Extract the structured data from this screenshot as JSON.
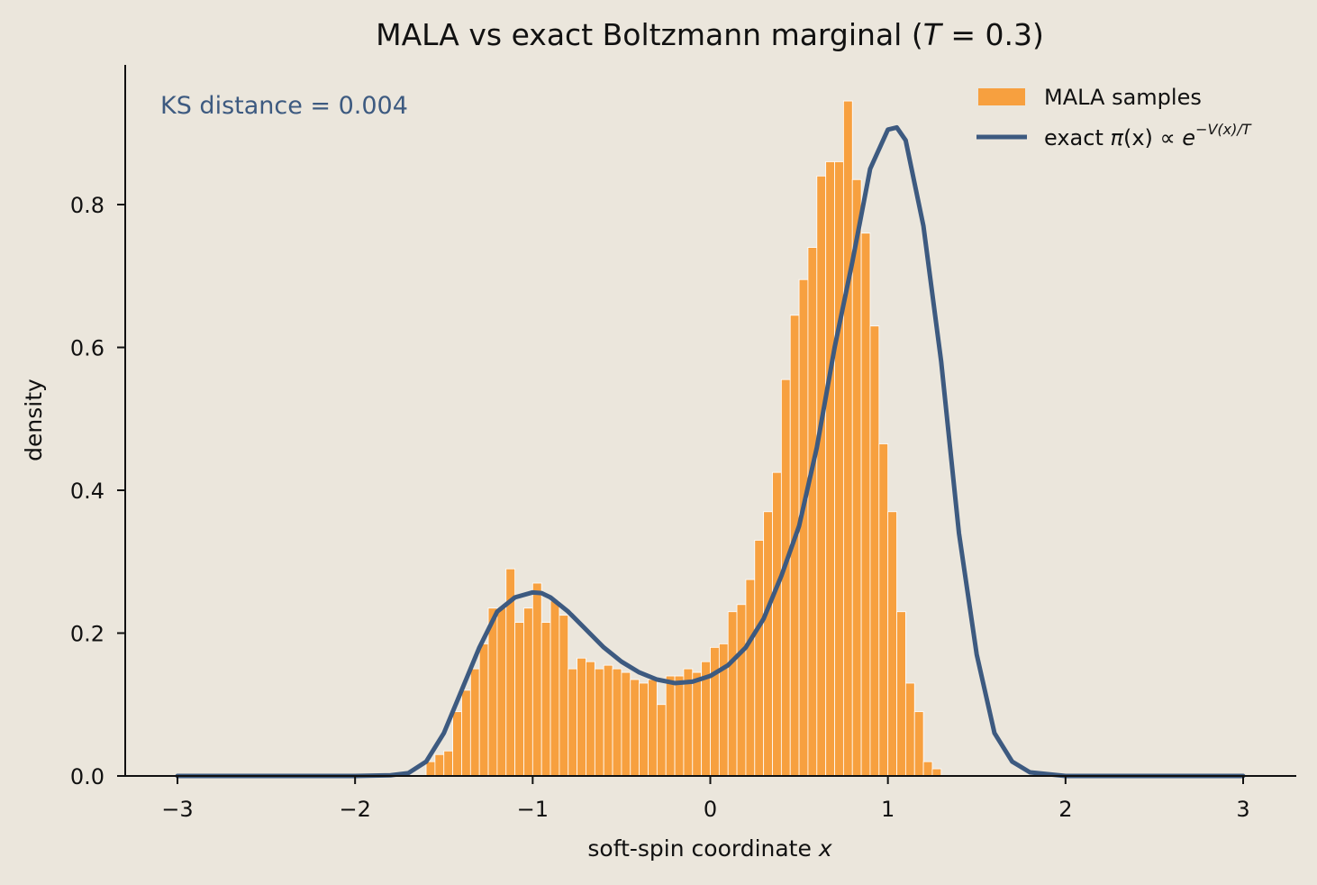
{
  "chart_data": {
    "type": "bar",
    "title": "MALA vs exact Boltzmann marginal  (T = 0.3)",
    "title_parts": {
      "prefix": "MALA vs exact Boltzmann marginal  (",
      "var": "T",
      "eq": " = 0.3)"
    },
    "xlabel": "soft-spin coordinate x",
    "xlabel_parts": {
      "text": "soft-spin coordinate ",
      "var": "x"
    },
    "ylabel": "density",
    "xlim": [
      -3.3,
      3.3
    ],
    "ylim": [
      0,
      0.99
    ],
    "xticks": [
      -3,
      -2,
      -1,
      0,
      1,
      2,
      3
    ],
    "xtick_labels": [
      "−3",
      "−2",
      "−1",
      "0",
      "1",
      "2",
      "3"
    ],
    "yticks": [
      0.0,
      0.2,
      0.4,
      0.6,
      0.8
    ],
    "ytick_labels": [
      "0.0",
      "0.2",
      "0.4",
      "0.6",
      "0.8"
    ],
    "grid": false,
    "legend_position": "top-right",
    "annotation": "KS distance = 0.004",
    "colors": {
      "histogram": "#f7a03f",
      "curve": "#3d5a80",
      "annotation": "#3d5a80",
      "axis": "#111111"
    },
    "series": [
      {
        "name": "MALA samples",
        "kind": "histogram",
        "bin_width": 0.05,
        "bin_edges_start": -1.6,
        "values": [
          0.02,
          0.03,
          0.035,
          0.09,
          0.12,
          0.15,
          0.185,
          0.235,
          0.235,
          0.29,
          0.215,
          0.235,
          0.27,
          0.215,
          0.245,
          0.225,
          0.15,
          0.165,
          0.16,
          0.15,
          0.155,
          0.15,
          0.145,
          0.135,
          0.13,
          0.135,
          0.1,
          0.14,
          0.14,
          0.15,
          0.145,
          0.16,
          0.18,
          0.185,
          0.23,
          0.24,
          0.275,
          0.33,
          0.37,
          0.425,
          0.555,
          0.645,
          0.695,
          0.74,
          0.84,
          0.86,
          0.86,
          0.945,
          0.835,
          0.76,
          0.63,
          0.465,
          0.37,
          0.23,
          0.13,
          0.09,
          0.02,
          0.01
        ]
      },
      {
        "name": "exact π(x) ∝ e^{−V(x)/T}",
        "label_parts": {
          "prefix": "exact ",
          "pi": "π",
          "arg": "(x) ∝ ",
          "e": "e",
          "sup": "−V(x)/T"
        },
        "kind": "line",
        "x": [
          -3.0,
          -2.0,
          -1.8,
          -1.7,
          -1.6,
          -1.5,
          -1.4,
          -1.3,
          -1.2,
          -1.1,
          -1.0,
          -0.95,
          -0.9,
          -0.8,
          -0.7,
          -0.6,
          -0.5,
          -0.4,
          -0.3,
          -0.2,
          -0.1,
          0.0,
          0.1,
          0.2,
          0.3,
          0.4,
          0.5,
          0.6,
          0.7,
          0.8,
          0.9,
          1.0,
          1.05,
          1.1,
          1.2,
          1.3,
          1.4,
          1.5,
          1.6,
          1.7,
          1.8,
          2.0,
          3.0
        ],
        "y": [
          0.0,
          0.0,
          0.001,
          0.004,
          0.02,
          0.06,
          0.12,
          0.18,
          0.23,
          0.25,
          0.257,
          0.256,
          0.25,
          0.23,
          0.205,
          0.18,
          0.16,
          0.145,
          0.135,
          0.13,
          0.132,
          0.14,
          0.155,
          0.18,
          0.22,
          0.28,
          0.35,
          0.46,
          0.6,
          0.72,
          0.85,
          0.905,
          0.908,
          0.89,
          0.77,
          0.58,
          0.34,
          0.17,
          0.06,
          0.02,
          0.005,
          0.0,
          0.0
        ]
      }
    ]
  }
}
